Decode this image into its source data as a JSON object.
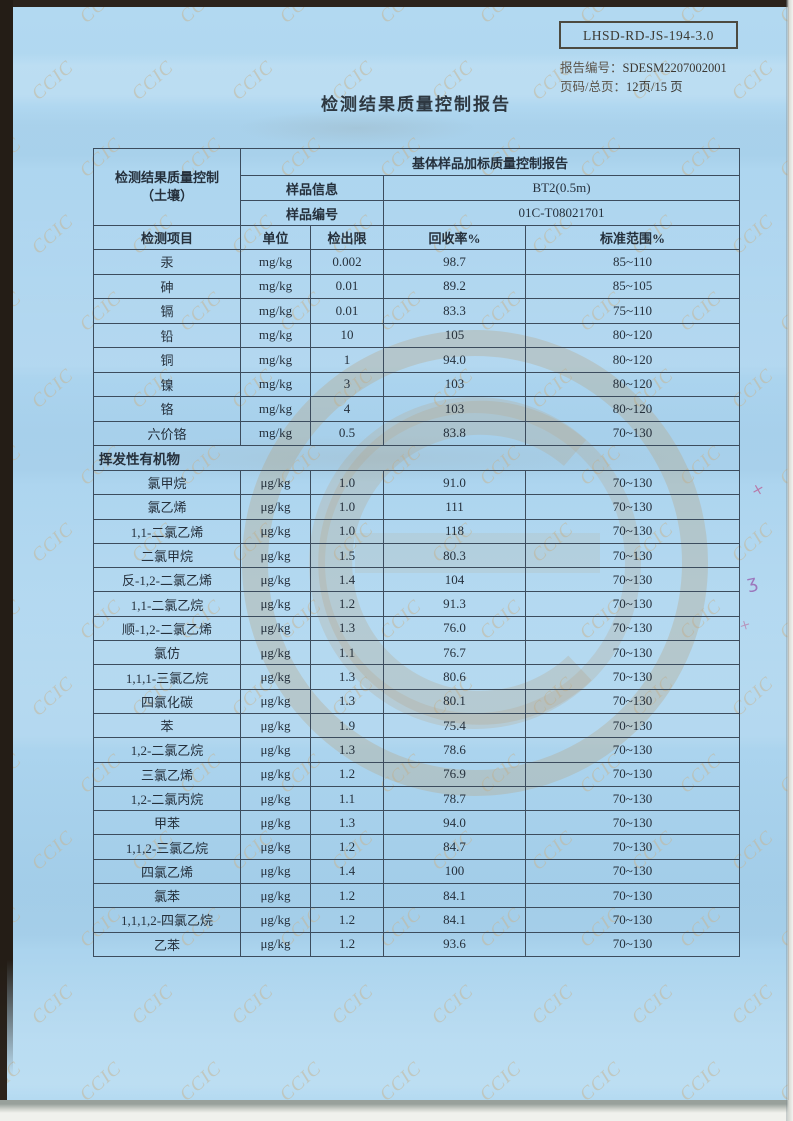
{
  "header": {
    "doc_code": "LHSD-RD-JS-194-3.0",
    "report_no_label": "报告编号：",
    "report_no_value": "SDESM2207002001",
    "page_label": "页码/总页：",
    "page_value": "12页/15 页"
  },
  "title": "检测结果质量控制报告",
  "watermark": {
    "text": "CCIC"
  },
  "annotations": {
    "marks": [
      "×",
      "ʒ",
      "×"
    ]
  },
  "table": {
    "left_header": {
      "line1": "检测结果质量控制",
      "line2": "（土壤）"
    },
    "group_header": "基体样品加标质量控制报告",
    "sample_info": {
      "label": "样品信息",
      "value": "BT2(0.5m)"
    },
    "sample_no": {
      "label": "样品编号",
      "value": "01C-T08021701"
    },
    "columns": [
      "检测项目",
      "单位",
      "检出限",
      "回收率%",
      "标准范围%"
    ],
    "metals": [
      [
        "汞",
        "mg/kg",
        "0.002",
        "98.7",
        "85~110"
      ],
      [
        "砷",
        "mg/kg",
        "0.01",
        "89.2",
        "85~105"
      ],
      [
        "镉",
        "mg/kg",
        "0.01",
        "83.3",
        "75~110"
      ],
      [
        "铅",
        "mg/kg",
        "10",
        "105",
        "80~120"
      ],
      [
        "铜",
        "mg/kg",
        "1",
        "94.0",
        "80~120"
      ],
      [
        "镍",
        "mg/kg",
        "3",
        "103",
        "80~120"
      ],
      [
        "铬",
        "mg/kg",
        "4",
        "103",
        "80~120"
      ],
      [
        "六价铬",
        "mg/kg",
        "0.5",
        "83.8",
        "70~130"
      ]
    ],
    "voc_section_label": "挥发性有机物",
    "vocs": [
      [
        "氯甲烷",
        "μg/kg",
        "1.0",
        "91.0",
        "70~130"
      ],
      [
        "氯乙烯",
        "μg/kg",
        "1.0",
        "111",
        "70~130"
      ],
      [
        "1,1-二氯乙烯",
        "μg/kg",
        "1.0",
        "118",
        "70~130"
      ],
      [
        "二氯甲烷",
        "μg/kg",
        "1.5",
        "80.3",
        "70~130"
      ],
      [
        "反-1,2-二氯乙烯",
        "μg/kg",
        "1.4",
        "104",
        "70~130"
      ],
      [
        "1,1-二氯乙烷",
        "μg/kg",
        "1.2",
        "91.3",
        "70~130"
      ],
      [
        "顺-1,2-二氯乙烯",
        "μg/kg",
        "1.3",
        "76.0",
        "70~130"
      ],
      [
        "氯仿",
        "μg/kg",
        "1.1",
        "76.7",
        "70~130"
      ],
      [
        "1,1,1-三氯乙烷",
        "μg/kg",
        "1.3",
        "80.6",
        "70~130"
      ],
      [
        "四氯化碳",
        "μg/kg",
        "1.3",
        "80.1",
        "70~130"
      ],
      [
        "苯",
        "μg/kg",
        "1.9",
        "75.4",
        "70~130"
      ],
      [
        "1,2-二氯乙烷",
        "μg/kg",
        "1.3",
        "78.6",
        "70~130"
      ],
      [
        "三氯乙烯",
        "μg/kg",
        "1.2",
        "76.9",
        "70~130"
      ],
      [
        "1,2-二氯丙烷",
        "μg/kg",
        "1.1",
        "78.7",
        "70~130"
      ],
      [
        "甲苯",
        "μg/kg",
        "1.3",
        "94.0",
        "70~130"
      ],
      [
        "1,1,2-三氯乙烷",
        "μg/kg",
        "1.2",
        "84.7",
        "70~130"
      ],
      [
        "四氯乙烯",
        "μg/kg",
        "1.4",
        "100",
        "70~130"
      ],
      [
        "氯苯",
        "μg/kg",
        "1.2",
        "84.1",
        "70~130"
      ],
      [
        "1,1,1,2-四氯乙烷",
        "μg/kg",
        "1.2",
        "84.1",
        "70~130"
      ],
      [
        "乙苯",
        "μg/kg",
        "1.2",
        "93.6",
        "70~130"
      ]
    ]
  }
}
